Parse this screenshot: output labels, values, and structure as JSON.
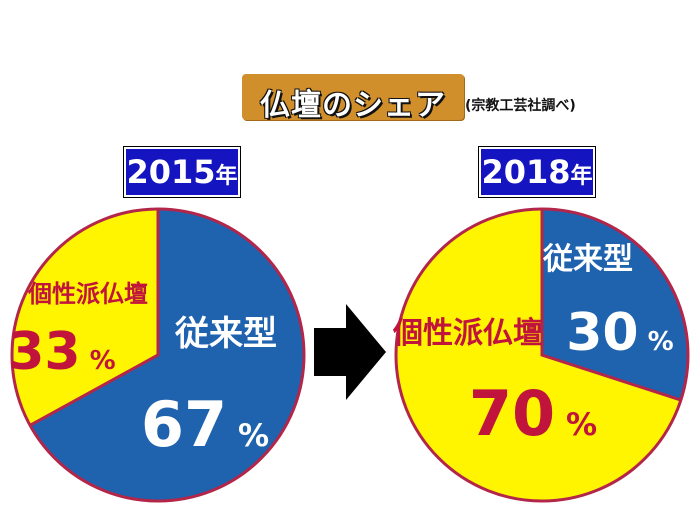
{
  "title": "仏壇のシェア",
  "source": "(宗教工芸社調べ)",
  "colors": {
    "conventional": "#1f62ae",
    "individual": "#fff500",
    "pie_border": "#b3264a",
    "label_individual": "#c0143c",
    "title_bg": "#d08f2a",
    "year_bg": "#1414c0"
  },
  "arrow": "right-arrow-icon",
  "charts": [
    {
      "year": "2015",
      "year_unit": "年"
    },
    {
      "year": "2018",
      "year_unit": "年"
    }
  ],
  "chart_data": [
    {
      "type": "pie",
      "title": "2015年",
      "slices": [
        {
          "label": "従来型",
          "value": 67,
          "display": "67",
          "unit": "%"
        },
        {
          "label": "個性派仏壇",
          "value": 33,
          "display": "33",
          "unit": "%"
        }
      ]
    },
    {
      "type": "pie",
      "title": "2018年",
      "slices": [
        {
          "label": "従来型",
          "value": 30,
          "display": "30",
          "unit": "%"
        },
        {
          "label": "個性派仏壇",
          "value": 70,
          "display": "70",
          "unit": "%"
        }
      ]
    }
  ]
}
